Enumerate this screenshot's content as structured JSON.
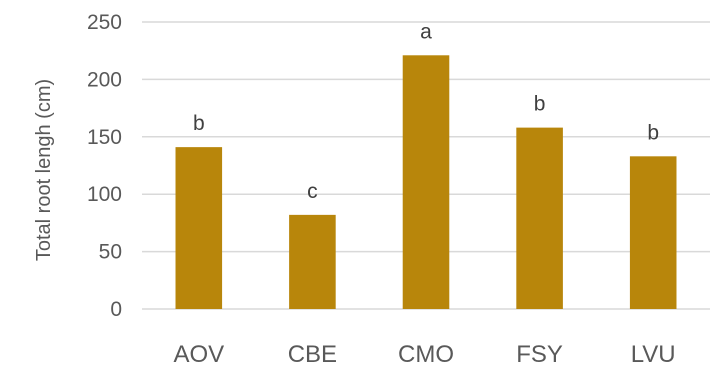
{
  "chart_data": {
    "type": "bar",
    "title": "",
    "xlabel": "",
    "ylabel": "Total root lengh (cm)",
    "categories": [
      "AOV",
      "CBE",
      "CMO",
      "FSY",
      "LVU"
    ],
    "values": [
      141,
      82,
      221,
      158,
      133
    ],
    "data_labels": [
      "b",
      "c",
      "a",
      "b",
      "b"
    ],
    "ylim": [
      0,
      250
    ],
    "yticks": [
      0,
      50,
      100,
      150,
      200,
      250
    ],
    "grid": true,
    "legend": "none",
    "bar_color": "#b8860b"
  }
}
